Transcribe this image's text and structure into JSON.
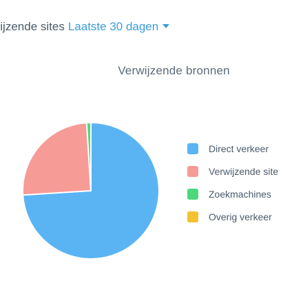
{
  "header": {
    "prefix": "wijzende sites",
    "range": "Laatste 30 dagen"
  },
  "chart_data": {
    "type": "pie",
    "title": "Verwijzende bronnen",
    "slices": [
      {
        "label": "Direct verkeer",
        "value": 74,
        "color": "#5ab4f3"
      },
      {
        "label": "Verwijzende site",
        "value": 25,
        "color": "#f79b97"
      },
      {
        "label": "Zoekmachines",
        "value": 1,
        "color": "#4cd97b"
      },
      {
        "label": "Overig verkeer",
        "value": 0,
        "color": "#f3c22e"
      }
    ],
    "legend_position": "right"
  }
}
